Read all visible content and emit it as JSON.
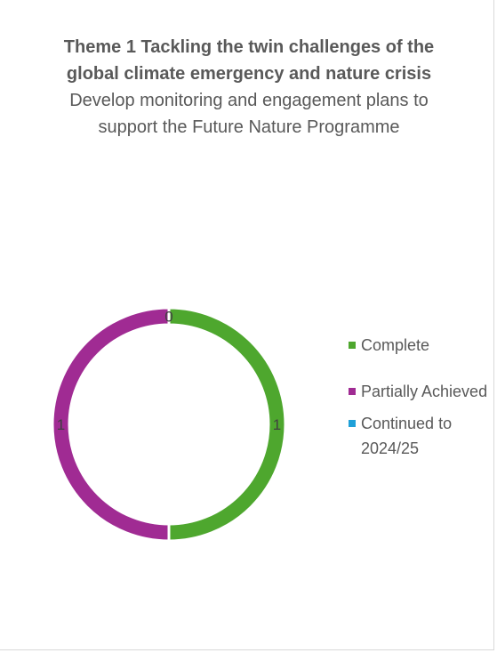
{
  "chart_data": {
    "type": "doughnut",
    "title": "Theme 1 Tackling the twin challenges of the global climate emergency and nature crisis",
    "subtitle": "Develop monitoring and engagement plans to support the Future Nature Programme",
    "categories": [
      "Complete",
      "Partially Achieved",
      "Continued to 2024/25"
    ],
    "values": [
      1,
      1,
      0
    ],
    "colors": [
      "#4ea72e",
      "#a02b93",
      "#1fa0d8"
    ],
    "data_labels": [
      "1",
      "1",
      "0"
    ],
    "legend_position": "right"
  }
}
